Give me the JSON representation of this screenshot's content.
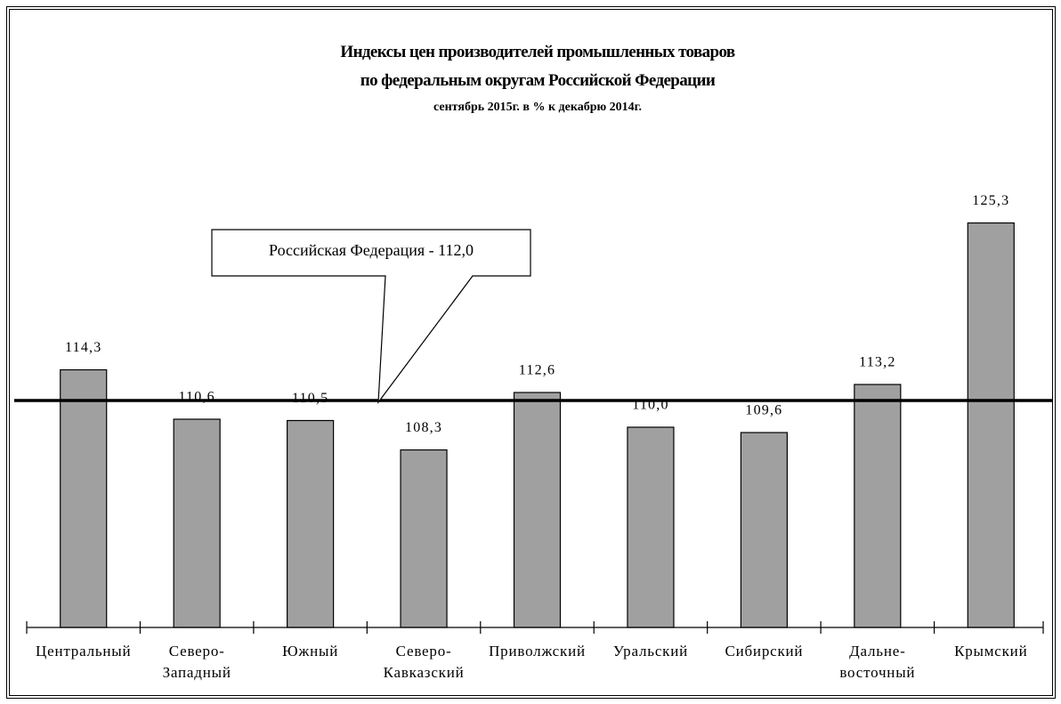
{
  "chart_data": {
    "type": "bar",
    "title": "Индексы цен производителей промышленных товаров\nпо федеральным округам Российской Федерации",
    "subtitle": "сентябрь 2015г. в % к декабрю 2014г.",
    "categories": [
      "Центральный",
      "Северо-\nЗападный",
      "Южный",
      "Северо-\nКавказский",
      "Приволжский",
      "Уральский",
      "Сибирский",
      "Дальне-\nвосточный",
      "Крымский"
    ],
    "values": [
      114.3,
      110.6,
      110.5,
      108.3,
      112.6,
      110.0,
      109.6,
      113.2,
      125.3
    ],
    "value_labels": [
      "114,3",
      "110,6",
      "110,5",
      "108,3",
      "112,6",
      "110,0",
      "109,6",
      "113,2",
      "125,3"
    ],
    "color": "#a0a0a0",
    "ylim": [
      95,
      128
    ],
    "reference_line": {
      "value": 112.0,
      "label": "Российская Федерация - 112,0"
    }
  }
}
